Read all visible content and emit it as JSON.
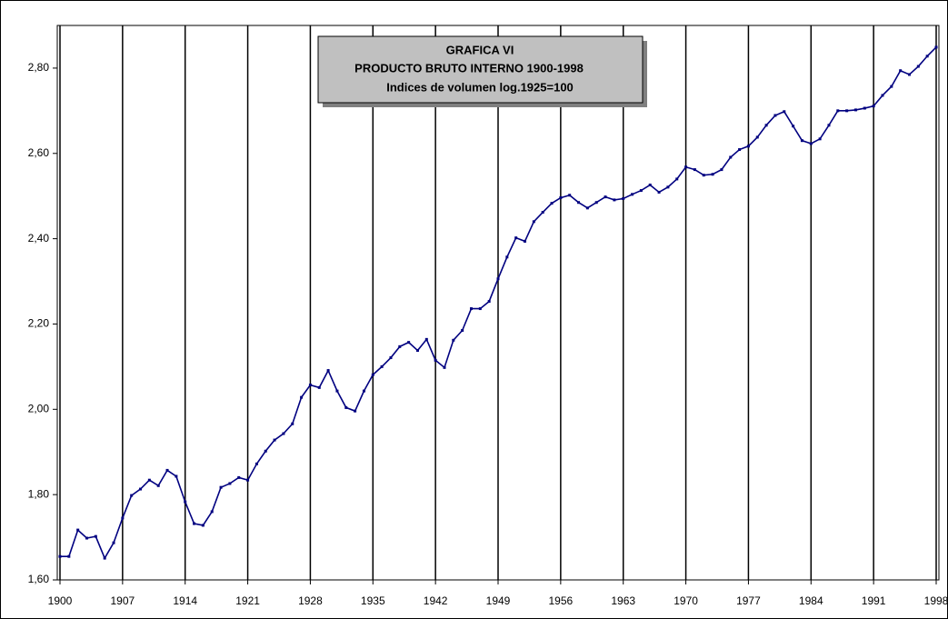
{
  "chart_data": {
    "type": "line",
    "title": "GRAFICA VI",
    "subtitle": "PRODUCTO BRUTO INTERNO 1900-1998",
    "note": "Indices de volumen log.1925=100",
    "x": [
      1900,
      1901,
      1902,
      1903,
      1904,
      1905,
      1906,
      1907,
      1908,
      1909,
      1910,
      1911,
      1912,
      1913,
      1914,
      1915,
      1916,
      1917,
      1918,
      1919,
      1920,
      1921,
      1922,
      1923,
      1924,
      1925,
      1926,
      1927,
      1928,
      1929,
      1930,
      1931,
      1932,
      1933,
      1934,
      1935,
      1936,
      1937,
      1938,
      1939,
      1940,
      1941,
      1942,
      1943,
      1944,
      1945,
      1946,
      1947,
      1948,
      1949,
      1950,
      1951,
      1952,
      1953,
      1954,
      1955,
      1956,
      1957,
      1958,
      1959,
      1960,
      1961,
      1962,
      1963,
      1964,
      1965,
      1966,
      1967,
      1968,
      1969,
      1970,
      1971,
      1972,
      1973,
      1974,
      1975,
      1976,
      1977,
      1978,
      1979,
      1980,
      1981,
      1982,
      1983,
      1984,
      1985,
      1986,
      1987,
      1988,
      1989,
      1990,
      1991,
      1992,
      1993,
      1994,
      1995,
      1996,
      1997,
      1998
    ],
    "series": [
      {
        "color": "#000080",
        "values": [
          1.655,
          1.655,
          1.717,
          1.698,
          1.702,
          1.651,
          1.687,
          1.745,
          1.798,
          1.813,
          1.834,
          1.821,
          1.857,
          1.843,
          1.783,
          1.732,
          1.728,
          1.76,
          1.817,
          1.826,
          1.84,
          1.834,
          1.872,
          1.902,
          1.928,
          1.943,
          1.966,
          2.028,
          2.057,
          2.051,
          2.091,
          2.043,
          2.004,
          1.996,
          2.043,
          2.081,
          2.1,
          2.121,
          2.147,
          2.157,
          2.138,
          2.164,
          2.115,
          2.098,
          2.162,
          2.185,
          2.236,
          2.236,
          2.253,
          2.306,
          2.357,
          2.402,
          2.394,
          2.44,
          2.462,
          2.483,
          2.496,
          2.502,
          2.485,
          2.472,
          2.485,
          2.498,
          2.491,
          2.494,
          2.504,
          2.513,
          2.526,
          2.509,
          2.521,
          2.54,
          2.568,
          2.562,
          2.549,
          2.551,
          2.562,
          2.591,
          2.609,
          2.617,
          2.638,
          2.666,
          2.689,
          2.698,
          2.664,
          2.63,
          2.623,
          2.634,
          2.666,
          2.7,
          2.7,
          2.702,
          2.706,
          2.711,
          2.736,
          2.757,
          2.794,
          2.785,
          2.804,
          2.828,
          2.849
        ]
      }
    ],
    "xlim": [
      1900,
      1998.5
    ],
    "xticks": [
      1900,
      1907,
      1914,
      1921,
      1928,
      1935,
      1942,
      1949,
      1956,
      1963,
      1970,
      1977,
      1984,
      1991,
      1998
    ],
    "ylim": [
      1.6,
      2.9
    ],
    "yticks": [
      {
        "value": 1.6,
        "label": "1,60"
      },
      {
        "value": 1.8,
        "label": "1,80"
      },
      {
        "value": 2.0,
        "label": "2,00"
      },
      {
        "value": 2.2,
        "label": "2,20"
      },
      {
        "value": 2.4,
        "label": "2,40"
      },
      {
        "value": 2.6,
        "label": "2,60"
      },
      {
        "value": 2.8,
        "label": "2,80"
      }
    ],
    "grid": "x"
  }
}
